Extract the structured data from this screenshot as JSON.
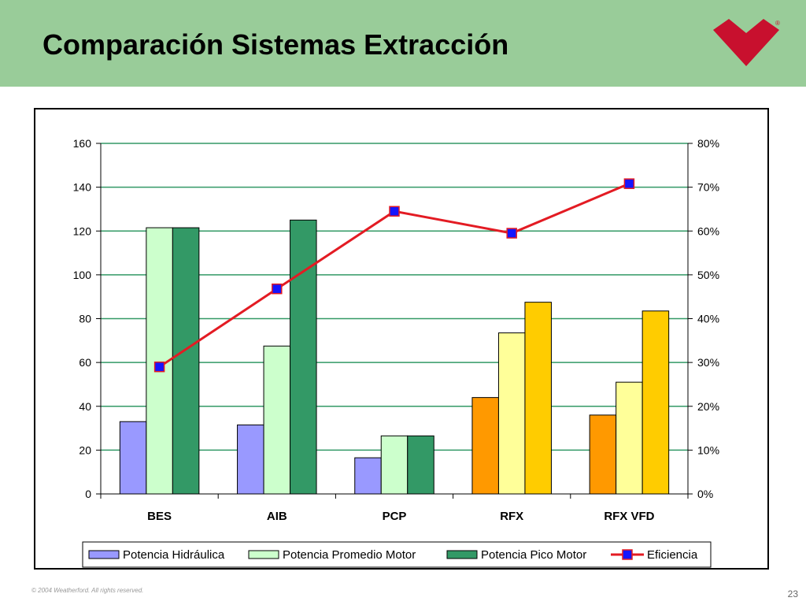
{
  "slide": {
    "title": "Comparación Sistemas Extracción",
    "copyright": "© 2004 Weatherford. All rights reserved.",
    "page_number": "23",
    "logo": {
      "icon": "weatherford-logo-icon",
      "color": "#c8102e",
      "mark": "®"
    }
  },
  "colors": {
    "header_bg": "#99cc99",
    "grid": "#339966",
    "efficiency_line": "#e31b23",
    "efficiency_marker": "#1515ff"
  },
  "chart_data": {
    "type": "bar",
    "categories": [
      "BES",
      "AIB",
      "PCP",
      "RFX",
      "RFX VFD"
    ],
    "ylim": [
      0,
      160
    ],
    "y_ticks": [
      "0",
      "20",
      "40",
      "60",
      "80",
      "100",
      "120",
      "140",
      "160"
    ],
    "y2lim": [
      0,
      0.8
    ],
    "y2_ticks": [
      "0%",
      "10%",
      "20%",
      "30%",
      "40%",
      "50%",
      "60%",
      "70%",
      "80%"
    ],
    "grid": true,
    "legend_position": "bottom",
    "series": [
      {
        "name": "Potencia Hidráulica",
        "values": [
          33,
          31.5,
          16.5,
          44,
          36
        ],
        "colors": [
          "#9999ff",
          "#9999ff",
          "#9999ff",
          "#ff9900",
          "#ff9900"
        ]
      },
      {
        "name": "Potencia Promedio Motor",
        "values": [
          121.5,
          67.5,
          26.5,
          73.5,
          51
        ],
        "colors": [
          "#ccffcc",
          "#ccffcc",
          "#ccffcc",
          "#ffff99",
          "#ffff99"
        ]
      },
      {
        "name": "Potencia Pico Motor",
        "values": [
          121.5,
          125,
          26.5,
          87.5,
          83.5
        ],
        "colors": [
          "#339966",
          "#339966",
          "#339966",
          "#ffcc00",
          "#ffcc00"
        ]
      },
      {
        "name": "Eficiencia",
        "type": "line",
        "axis": "right",
        "values": [
          0.29,
          0.468,
          0.645,
          0.595,
          0.708
        ]
      }
    ]
  }
}
